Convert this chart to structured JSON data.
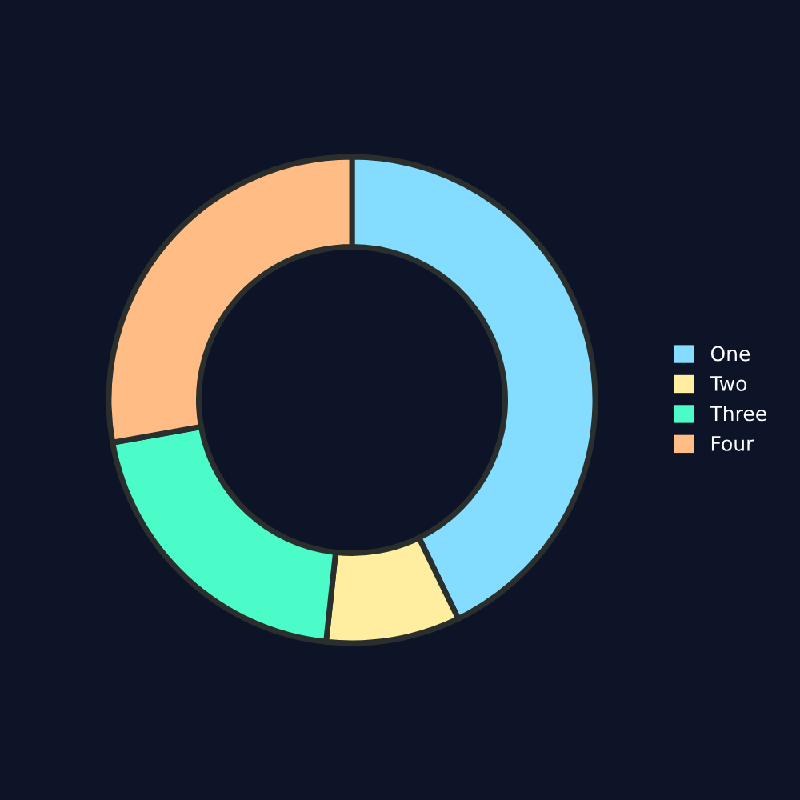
{
  "chart_data": {
    "type": "donut",
    "categories": [
      "One",
      "Two",
      "Three",
      "Four"
    ],
    "values": [
      42.8,
      8.9,
      20.5,
      27.8
    ],
    "colors": [
      "#84dcff",
      "#ffeea0",
      "#4cfcc8",
      "#ffbc84"
    ],
    "legend": "right"
  }
}
